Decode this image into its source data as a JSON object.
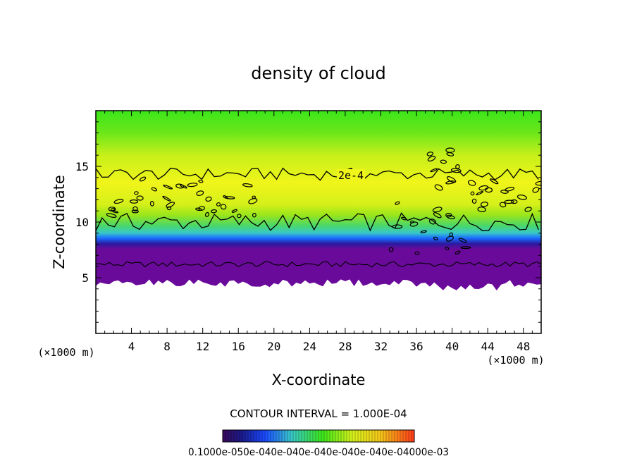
{
  "chart_data": {
    "type": "heatmap",
    "title": "density of cloud",
    "xlabel": "X-coordinate",
    "ylabel": "Z-coordinate",
    "x_unit_label": "(×1000 m)",
    "z_unit_label": "(×1000 m)",
    "xlim": [
      0,
      50
    ],
    "ylim": [
      0,
      20
    ],
    "x_ticks": [
      4,
      8,
      12,
      16,
      20,
      24,
      28,
      32,
      36,
      40,
      44,
      48
    ],
    "y_ticks": [
      5,
      10,
      15
    ],
    "contour_interval_text": "CONTOUR INTERVAL = 1.000E-04",
    "contour_label": "2e-4",
    "colorbar_labels": [
      "0.1000",
      "e-05",
      "0e-04",
      "0e-04",
      "0e-04",
      "0e-04",
      "0e-04",
      "0e-04",
      "000e-03"
    ],
    "colorbar_label_text": "0.1000e-050e-040e-040e-040e-040e-040e-04000e-03",
    "field": {
      "cloud_base_km": 4.5,
      "cloud_top_km": 20,
      "contour_1e4_height_km": 6.2,
      "contour_2e4_lower_km": 10,
      "contour_2e4_upper_km": 14.3
    },
    "colors": {
      "low": "#3a0a6a",
      "mid_low": "#1a3aff",
      "mid": "#39d7d7",
      "green": "#55e61a",
      "yellow": "#e6f51a",
      "high": "#ff3b1a"
    }
  }
}
